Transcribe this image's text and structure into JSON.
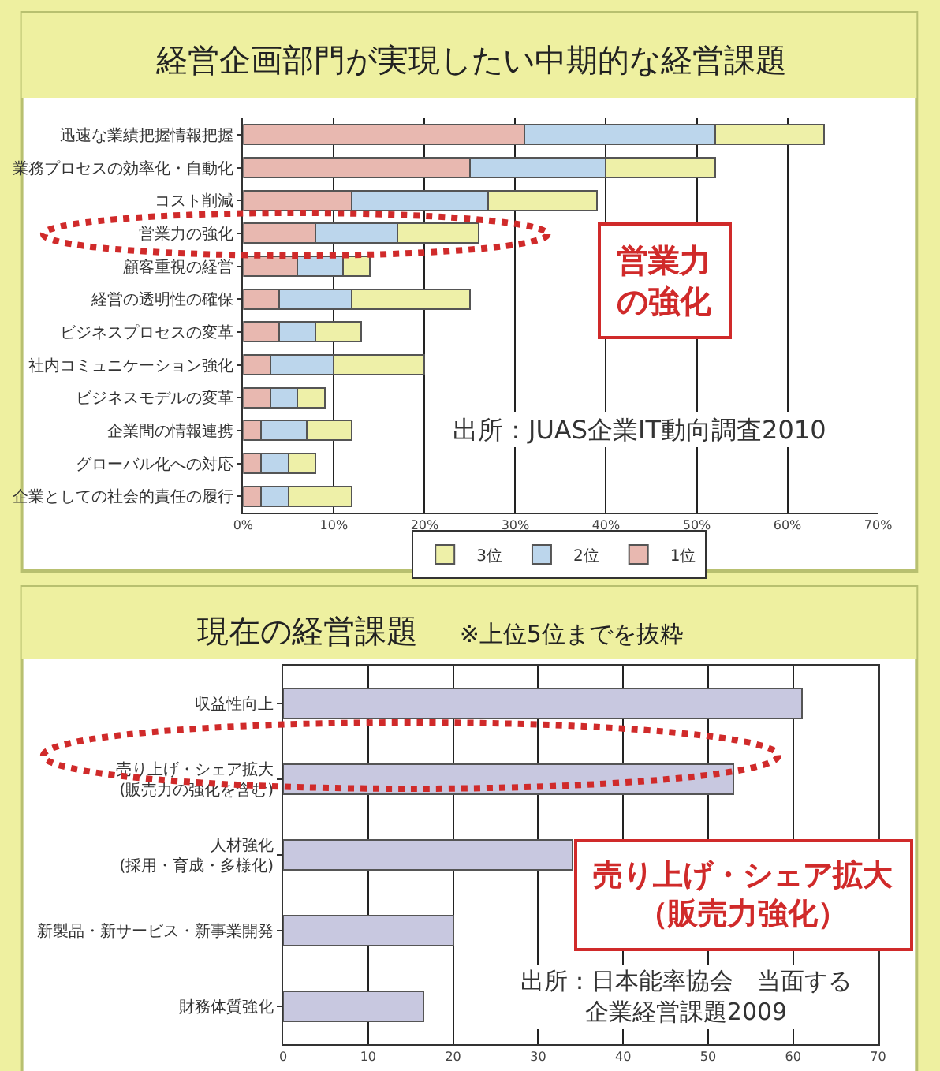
{
  "chart_data": [
    {
      "type": "bar",
      "orientation": "horizontal",
      "stacked": true,
      "title": "経営企画部門が実現したい中期的な経営課題",
      "categories": [
        "迅速な業績把握情報把握",
        "業務プロセスの効率化・自動化",
        "コスト削減",
        "営業力の強化",
        "顧客重視の経営",
        "経営の透明性の確保",
        "ビジネスプロセスの変革",
        "社内コミュニケーション強化",
        "ビジネスモデルの変革",
        "企業間の情報連携",
        "グローバル化への対応",
        "企業としての社会的責任の履行"
      ],
      "series": [
        {
          "name": "1位",
          "color": "#e8b8b0",
          "values": [
            31,
            25,
            12,
            8,
            6,
            4,
            4,
            3,
            3,
            2,
            2,
            2
          ]
        },
        {
          "name": "2位",
          "color": "#bcd6ec",
          "values": [
            21,
            15,
            15,
            9,
            5,
            8,
            4,
            7,
            3,
            5,
            3,
            3
          ]
        },
        {
          "name": "3位",
          "color": "#eef0a8",
          "values": [
            12,
            12,
            12,
            9,
            3,
            13,
            5,
            10,
            3,
            5,
            3,
            7
          ]
        }
      ],
      "xlim": [
        0,
        70
      ],
      "xticks": [
        {
          "value": 0,
          "label": "0%"
        },
        {
          "value": 10,
          "label": "10%"
        },
        {
          "value": 20,
          "label": "20%"
        },
        {
          "value": 30,
          "label": "30%"
        },
        {
          "value": 40,
          "label": "40%"
        },
        {
          "value": 50,
          "label": "50%"
        },
        {
          "value": 60,
          "label": "60%"
        },
        {
          "value": 70,
          "label": "70%"
        }
      ],
      "grid": "x",
      "legend": "bottom",
      "annotations": [
        "出所：JUAS企業IT動向調査2010",
        "営業力の強化"
      ]
    },
    {
      "type": "bar",
      "orientation": "horizontal",
      "title": "現在の経営課題",
      "subtitle": "※上位5位までを抜粋",
      "categories": [
        "収益性向上",
        "売り上げ・シェア拡大\n(販売力の強化を含む)",
        "人材強化\n(採用・育成・多様化)",
        "新製品・新サービス・新事業開発",
        "財務体質強化"
      ],
      "values": [
        61,
        53,
        34,
        20,
        16.5
      ],
      "color": "#c8c8e0",
      "xlim": [
        0,
        70
      ],
      "xticks": [
        0,
        10,
        20,
        30,
        40,
        50,
        60,
        70
      ],
      "grid": "x",
      "annotations": [
        "売り上げ・シェア拡大（販売力強化）",
        "出所：日本能率協会　当面する企業経営課題2009"
      ]
    }
  ]
}
